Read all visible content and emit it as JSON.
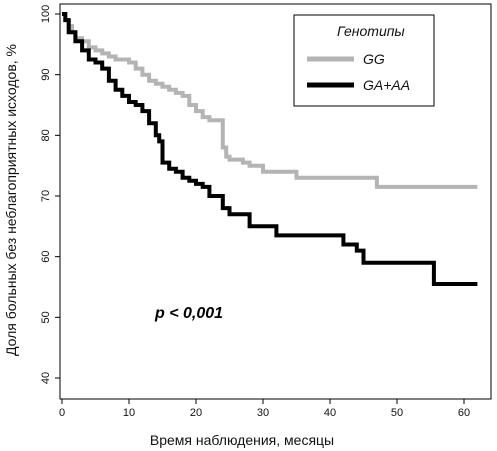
{
  "chart_data": {
    "type": "line",
    "title": "",
    "xlabel": "Время наблюдения, месяцы",
    "ylabel": "Доля больных без неблагоприятных исходов, %",
    "xlim": [
      0,
      63
    ],
    "ylim": [
      37,
      101
    ],
    "xticks": [
      "0",
      "10",
      "20",
      "30",
      "40",
      "50",
      "60"
    ],
    "yticks": [
      "40",
      "50",
      "60",
      "70",
      "80",
      "90",
      "100"
    ],
    "grid": false,
    "legend": {
      "title": "Генотипы",
      "placement": "top-right"
    },
    "annotation": "p < 0,001",
    "series": [
      {
        "name": "GG",
        "color": "#b4b4b4",
        "x": [
          0,
          0.5,
          1,
          1.5,
          2,
          3,
          4,
          5,
          6,
          7,
          8,
          9,
          10,
          11,
          12,
          13,
          14,
          15,
          16,
          17,
          18,
          19,
          20,
          21,
          22,
          23,
          24,
          24.5,
          25,
          27,
          28,
          30,
          35,
          40,
          45,
          47,
          50,
          55,
          62
        ],
        "values": [
          100,
          99,
          98,
          97,
          96,
          95.5,
          94.5,
          94,
          93.5,
          93,
          92.5,
          92.5,
          92,
          91,
          90,
          89,
          88.5,
          88,
          87.5,
          87,
          86.5,
          85,
          84,
          83,
          82.5,
          82.5,
          78,
          76.5,
          76,
          75.5,
          75,
          74,
          73,
          73,
          73,
          71.5,
          71.5,
          71.5,
          71.5
        ]
      },
      {
        "name": "GA+AA",
        "color": "#000000",
        "x": [
          0,
          0.5,
          1,
          2,
          3,
          4,
          5,
          6,
          7,
          8,
          9,
          10,
          11,
          12,
          13,
          14,
          14.5,
          15,
          16,
          17,
          18,
          19,
          20,
          21,
          22,
          24,
          25,
          26,
          28,
          30,
          32,
          40,
          42,
          44,
          45,
          48,
          55.5,
          62
        ],
        "values": [
          100,
          99,
          97,
          95.5,
          94,
          92.5,
          92,
          91,
          89,
          87.5,
          86.5,
          85.5,
          85,
          84,
          82,
          80,
          79,
          75.5,
          74.5,
          74,
          73,
          72.5,
          72,
          71.5,
          70,
          68,
          67,
          67,
          65,
          65,
          63.5,
          63.5,
          62,
          61,
          59,
          59,
          55.5,
          55.5
        ]
      }
    ]
  }
}
